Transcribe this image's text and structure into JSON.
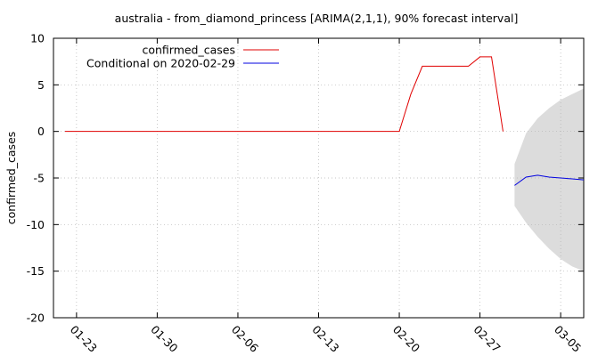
{
  "chart_data": {
    "type": "line",
    "title": "australia - from_diamond_princess [ARIMA(2,1,1), 90% forecast interval]",
    "ylabel": "confirmed_cases",
    "xlabel": "",
    "ylim": [
      -20,
      10
    ],
    "yticks": [
      10,
      5,
      0,
      -5,
      -10,
      -15,
      -20
    ],
    "xlim": [
      "2020-01-21",
      "2020-03-07"
    ],
    "xticks": [
      {
        "date": "2020-01-23",
        "label": "01-23"
      },
      {
        "date": "2020-01-30",
        "label": "01-30"
      },
      {
        "date": "2020-02-06",
        "label": "02-06"
      },
      {
        "date": "2020-02-13",
        "label": "02-13"
      },
      {
        "date": "2020-02-20",
        "label": "02-20"
      },
      {
        "date": "2020-02-27",
        "label": "02-27"
      },
      {
        "date": "2020-03-05",
        "label": "03-05"
      }
    ],
    "grid": true,
    "legend_position": "top-left",
    "series": [
      {
        "name": "confirmed_cases",
        "color": "#e00000",
        "x": [
          "2020-01-22",
          "2020-02-20",
          "2020-02-21",
          "2020-02-22",
          "2020-02-23",
          "2020-02-24",
          "2020-02-25",
          "2020-02-26",
          "2020-02-27",
          "2020-02-28",
          "2020-02-29"
        ],
        "y": [
          0,
          0,
          4,
          7,
          7,
          7,
          7,
          7,
          8,
          8,
          0
        ]
      },
      {
        "name": "Conditional on 2020-02-29",
        "color": "#0000e0",
        "x": [
          "2020-03-01",
          "2020-03-02",
          "2020-03-03",
          "2020-03-04",
          "2020-03-05",
          "2020-03-06",
          "2020-03-07"
        ],
        "y": [
          -5.8,
          -4.9,
          -4.7,
          -4.9,
          -5.0,
          -5.1,
          -5.2
        ]
      }
    ],
    "interval": {
      "label": "90% forecast interval",
      "color": "#dcdcdc",
      "x": [
        "2020-03-01",
        "2020-03-02",
        "2020-03-03",
        "2020-03-04",
        "2020-03-05",
        "2020-03-06",
        "2020-03-07"
      ],
      "lower": [
        -8.0,
        -9.8,
        -11.3,
        -12.6,
        -13.7,
        -14.5,
        -15.0
      ],
      "upper": [
        -3.5,
        -0.2,
        1.4,
        2.5,
        3.4,
        4.0,
        4.6
      ]
    }
  }
}
